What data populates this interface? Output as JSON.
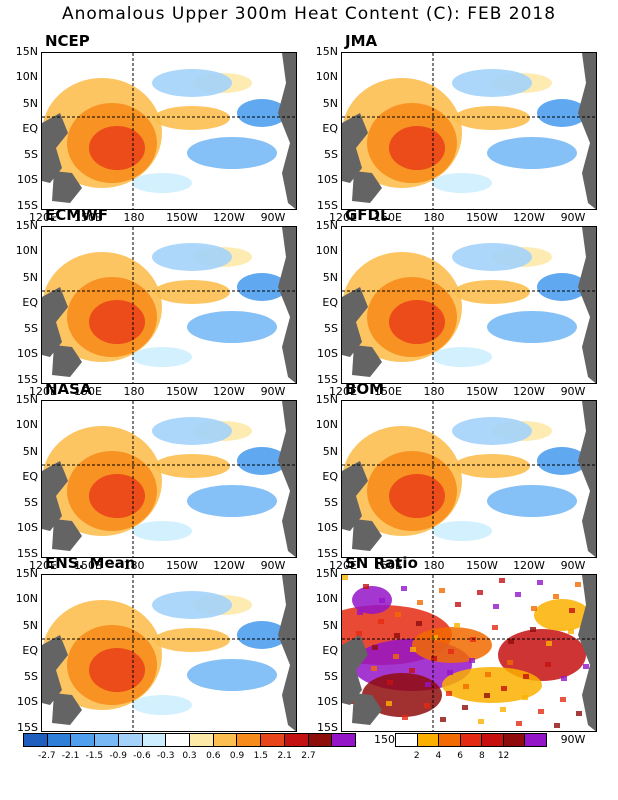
{
  "title": "Anomalous Upper 300m Heat Content (C): FEB 2018",
  "lat_labels": [
    "15N",
    "10N",
    "5N",
    "EQ",
    "5S",
    "10S",
    "15S"
  ],
  "lon_labels": [
    "120E",
    "150E",
    "180",
    "150W",
    "120W",
    "90W"
  ],
  "panels": [
    {
      "label": "NCEP"
    },
    {
      "label": "JMA"
    },
    {
      "label": "ECMWF"
    },
    {
      "label": "GFDL"
    },
    {
      "label": "NASA"
    },
    {
      "label": "BOM"
    },
    {
      "label": "ENS. Mean"
    },
    {
      "label": "SN Ratio"
    }
  ],
  "anomaly_colorbar": {
    "colors": [
      "#1f5ebf",
      "#2f7fd8",
      "#4f9fee",
      "#78b9f5",
      "#a3d3fb",
      "#cdeefe",
      "#ffffff",
      "#fde9a8",
      "#fcbf50",
      "#f78c1c",
      "#e9451a",
      "#c41212",
      "#8f0c0c",
      "#9414c8"
    ],
    "ticks": [
      "-2.7",
      "-2.1",
      "-1.5",
      "-0.9",
      "-0.6",
      "-0.3",
      "0.3",
      "0.6",
      "0.9",
      "1.5",
      "2.1",
      "2.7"
    ]
  },
  "sn_colorbar": {
    "colors": [
      "#ffffff",
      "#fbb000",
      "#f26a00",
      "#e42a12",
      "#c61010",
      "#900c0c",
      "#9414c8"
    ],
    "ticks": [
      "2",
      "4",
      "6",
      "8",
      "12"
    ]
  },
  "colors": {
    "land": "#646464",
    "warm": "#e9451a",
    "cold": "#4f9fee"
  }
}
